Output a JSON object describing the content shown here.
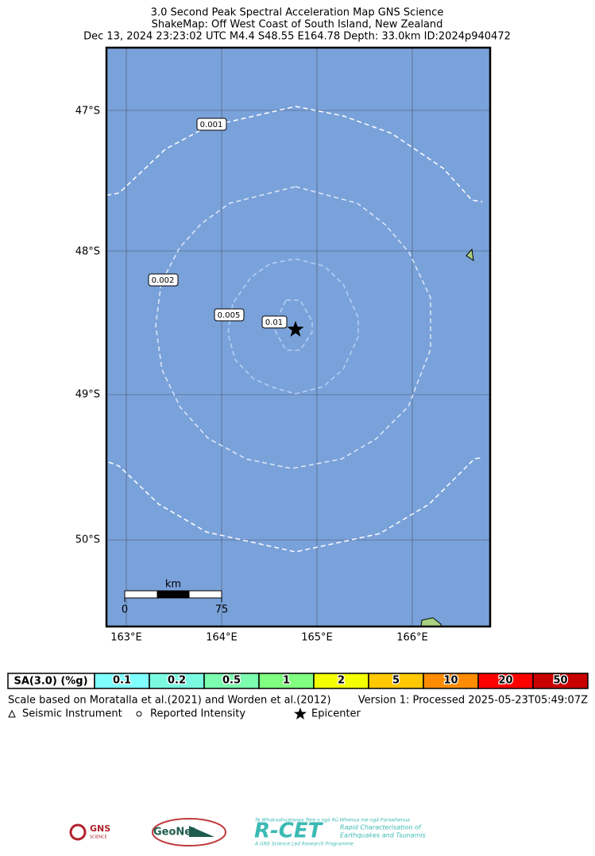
{
  "header": {
    "lines": [
      "3.0 Second Peak Spectral Acceleration Map GNS Science",
      "ShakeMap: Off West Coast of South Island, New Zealand",
      "Dec 13, 2024 23:23:02 UTC M4.4 S48.55 E164.78 Depth: 33.0km ID:2024p940472"
    ]
  },
  "map": {
    "lat_labels": [
      "47°S",
      "48°S",
      "49°S",
      "50°S"
    ],
    "lon_labels": [
      "163°E",
      "164°E",
      "165°E",
      "166°E"
    ],
    "contour_labels": [
      "0.001",
      "0.002",
      "0.005",
      "0.01"
    ],
    "scale_bar": {
      "unit": "km",
      "ticks": [
        "0",
        "75"
      ]
    }
  },
  "colorbar": {
    "title": "SA(3.0) (%g)",
    "bins": [
      {
        "label": "0.1",
        "color": "#80ffff"
      },
      {
        "label": "0.2",
        "color": "#7afbe1"
      },
      {
        "label": "0.5",
        "color": "#7cfdb0"
      },
      {
        "label": "1",
        "color": "#80ff80"
      },
      {
        "label": "2",
        "color": "#f4ff00"
      },
      {
        "label": "5",
        "color": "#ffc800"
      },
      {
        "label": "10",
        "color": "#ff8c00"
      },
      {
        "label": "20",
        "color": "#ff0000"
      },
      {
        "label": "50",
        "color": "#c80000"
      }
    ]
  },
  "notes": {
    "reference": "Scale based on Moratalla et al.(2021) and Worden et al.(2012)",
    "version": "Version 1: Processed 2025-05-23T05:49:07Z"
  },
  "legend": [
    "Seismic Instrument",
    "Reported Intensity",
    "Epicenter"
  ],
  "logos": {
    "gns": "GNS",
    "gns_sub": "SCIENCE",
    "geonet": "GeoNet",
    "rcet": "R-CET",
    "rcet_tag": "Te Whakaahuatanga Tere o ngā Rū Whenua me ngā Parawhenua",
    "rcet_desc1": "Rapid Characterisation of",
    "rcet_desc2": "Earthquakes and Tsunamis",
    "rcet_foot": "A GNS Science Led Research Programme"
  }
}
